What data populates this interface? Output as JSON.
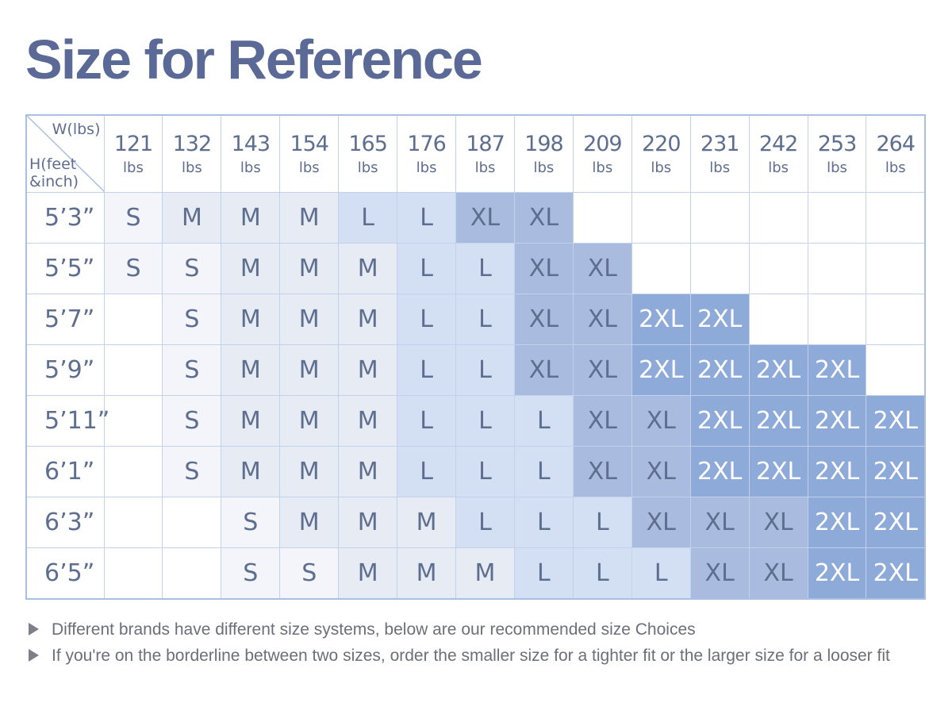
{
  "title": "Size for Reference",
  "corner": {
    "weight_label": "W(lbs)",
    "height_label_line1": "H(feet",
    "height_label_line2": "&inch)"
  },
  "weight_unit": "lbs",
  "weights": [
    "121",
    "132",
    "143",
    "154",
    "165",
    "176",
    "187",
    "198",
    "209",
    "220",
    "231",
    "242",
    "253",
    "264"
  ],
  "rows": [
    {
      "height": "5’3”",
      "sizes": [
        "S",
        "M",
        "M",
        "M",
        "L",
        "L",
        "XL",
        "XL",
        "",
        "",
        "",
        "",
        "",
        ""
      ]
    },
    {
      "height": "5’5”",
      "sizes": [
        "S",
        "S",
        "M",
        "M",
        "M",
        "L",
        "L",
        "XL",
        "XL",
        "",
        "",
        "",
        "",
        ""
      ]
    },
    {
      "height": "5’7”",
      "sizes": [
        "",
        "S",
        "M",
        "M",
        "M",
        "L",
        "L",
        "XL",
        "XL",
        "2XL",
        "2XL",
        "",
        "",
        ""
      ]
    },
    {
      "height": "5’9”",
      "sizes": [
        "",
        "S",
        "M",
        "M",
        "M",
        "L",
        "L",
        "XL",
        "XL",
        "2XL",
        "2XL",
        "2XL",
        "2XL",
        ""
      ]
    },
    {
      "height": "5’11”",
      "sizes": [
        "",
        "S",
        "M",
        "M",
        "M",
        "L",
        "L",
        "L",
        "XL",
        "XL",
        "2XL",
        "2XL",
        "2XL",
        "2XL"
      ]
    },
    {
      "height": "6’1”",
      "sizes": [
        "",
        "S",
        "M",
        "M",
        "M",
        "L",
        "L",
        "L",
        "XL",
        "XL",
        "2XL",
        "2XL",
        "2XL",
        "2XL"
      ]
    },
    {
      "height": "6’3”",
      "sizes": [
        "",
        "",
        "S",
        "M",
        "M",
        "M",
        "L",
        "L",
        "L",
        "XL",
        "XL",
        "XL",
        "2XL",
        "2XL"
      ]
    },
    {
      "height": "6’5”",
      "sizes": [
        "",
        "",
        "S",
        "S",
        "M",
        "M",
        "M",
        "L",
        "L",
        "L",
        "XL",
        "XL",
        "2XL",
        "2XL"
      ]
    }
  ],
  "size_colors": {
    "S": "#f3f5fa",
    "M": "#e6ebf4",
    "L": "#d3e0f4",
    "XL": "#a9bce0",
    "2XL": "#8eaad9"
  },
  "notes": [
    "Different brands have different size systems, below are our recommended size Choices",
    "If you're on the borderline between two sizes, order the smaller size for a tighter fit or the larger size for a looser fit"
  ]
}
